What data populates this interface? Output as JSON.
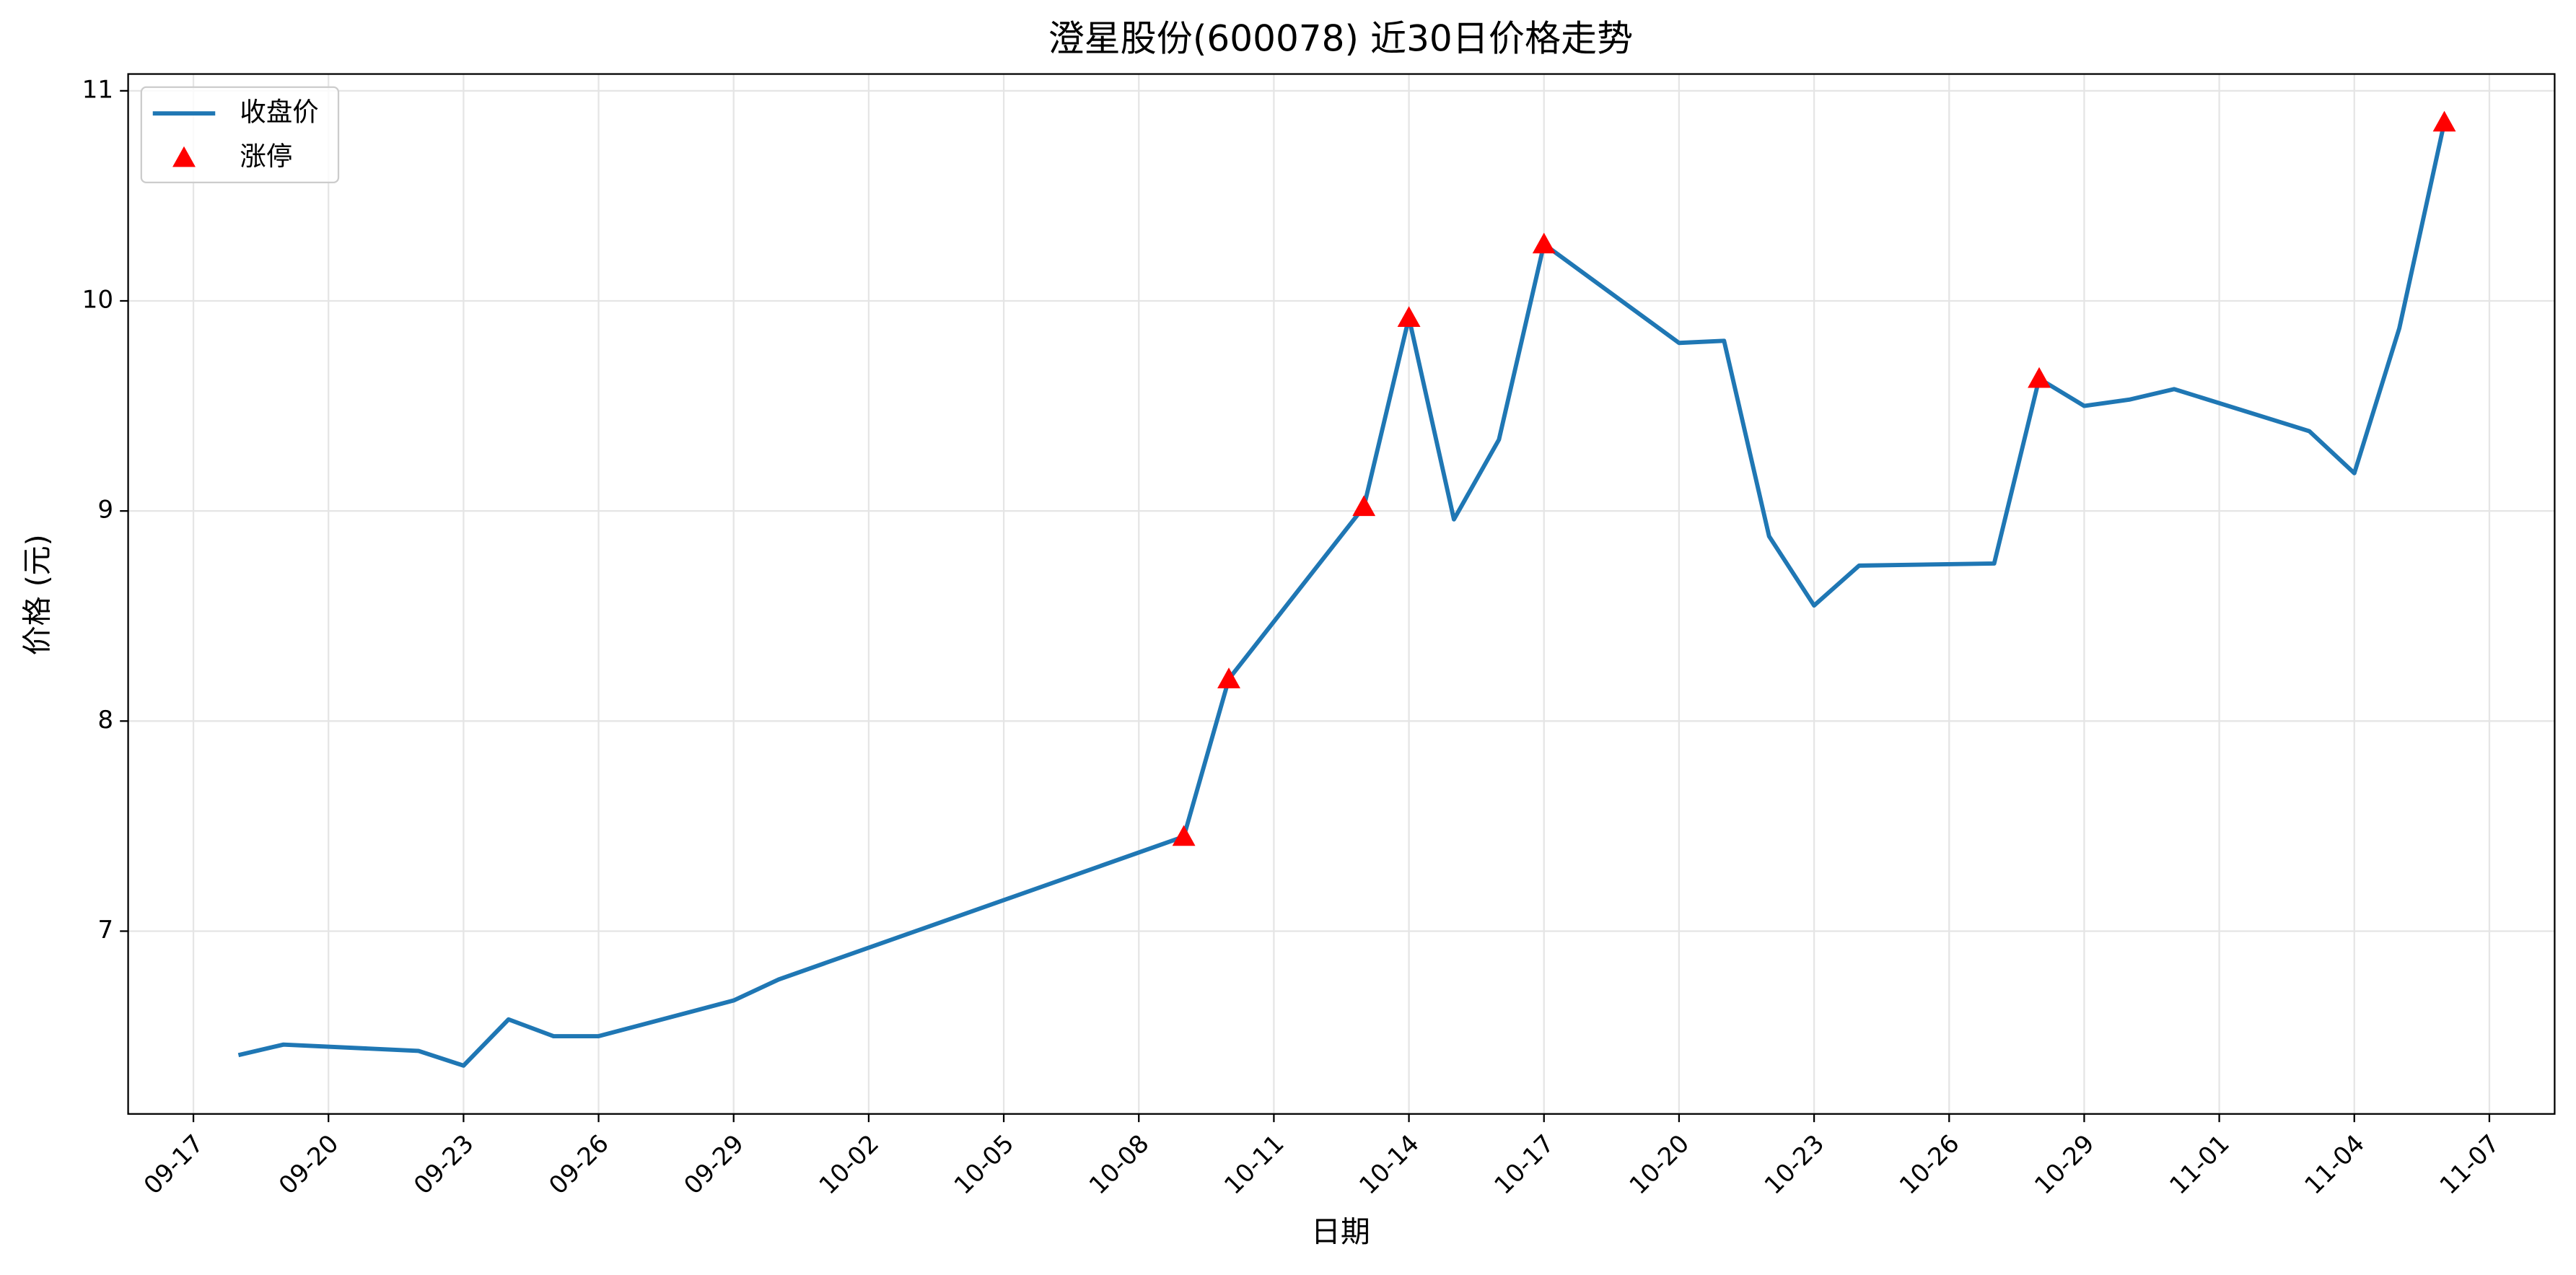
{
  "chart_data": {
    "type": "line",
    "title": "澄星股份(600078) 近30日价格走势",
    "xlabel": "日期",
    "ylabel": "价格 (元)",
    "x": [
      "09-18",
      "09-19",
      "09-22",
      "09-23",
      "09-24",
      "09-25",
      "09-26",
      "09-29",
      "09-30",
      "10-09",
      "10-10",
      "10-13",
      "10-14",
      "10-15",
      "10-16",
      "10-17",
      "10-20",
      "10-21",
      "10-22",
      "10-23",
      "10-24",
      "10-27",
      "10-28",
      "10-29",
      "10-30",
      "10-31",
      "11-03",
      "11-04",
      "11-05",
      "11-06"
    ],
    "series": [
      {
        "name": "收盘价",
        "color": "#1f77b4",
        "values": [
          6.41,
          6.46,
          6.43,
          6.36,
          6.58,
          6.5,
          6.5,
          6.67,
          6.77,
          7.45,
          8.2,
          9.02,
          9.92,
          8.96,
          9.34,
          10.27,
          9.8,
          9.81,
          8.88,
          8.55,
          8.74,
          8.75,
          9.63,
          9.5,
          9.53,
          9.58,
          9.38,
          9.18,
          9.87,
          10.85
        ]
      },
      {
        "name": "涨停",
        "type": "scatter",
        "marker": "triangle",
        "color": "#ff0000",
        "x": [
          "10-09",
          "10-10",
          "10-13",
          "10-14",
          "10-17",
          "10-28",
          "11-06"
        ],
        "values": [
          7.45,
          8.2,
          9.02,
          9.92,
          10.27,
          9.63,
          10.85
        ]
      }
    ],
    "xticks": [
      "09-17",
      "09-20",
      "09-23",
      "09-26",
      "09-29",
      "10-02",
      "10-05",
      "10-08",
      "10-11",
      "10-14",
      "10-17",
      "10-20",
      "10-23",
      "10-26",
      "10-29",
      "11-01",
      "11-04",
      "11-07"
    ],
    "ylim": [
      6.13,
      11.08
    ],
    "yticks": [
      7,
      8,
      9,
      10,
      11
    ],
    "grid": true,
    "legend": "upper left"
  }
}
